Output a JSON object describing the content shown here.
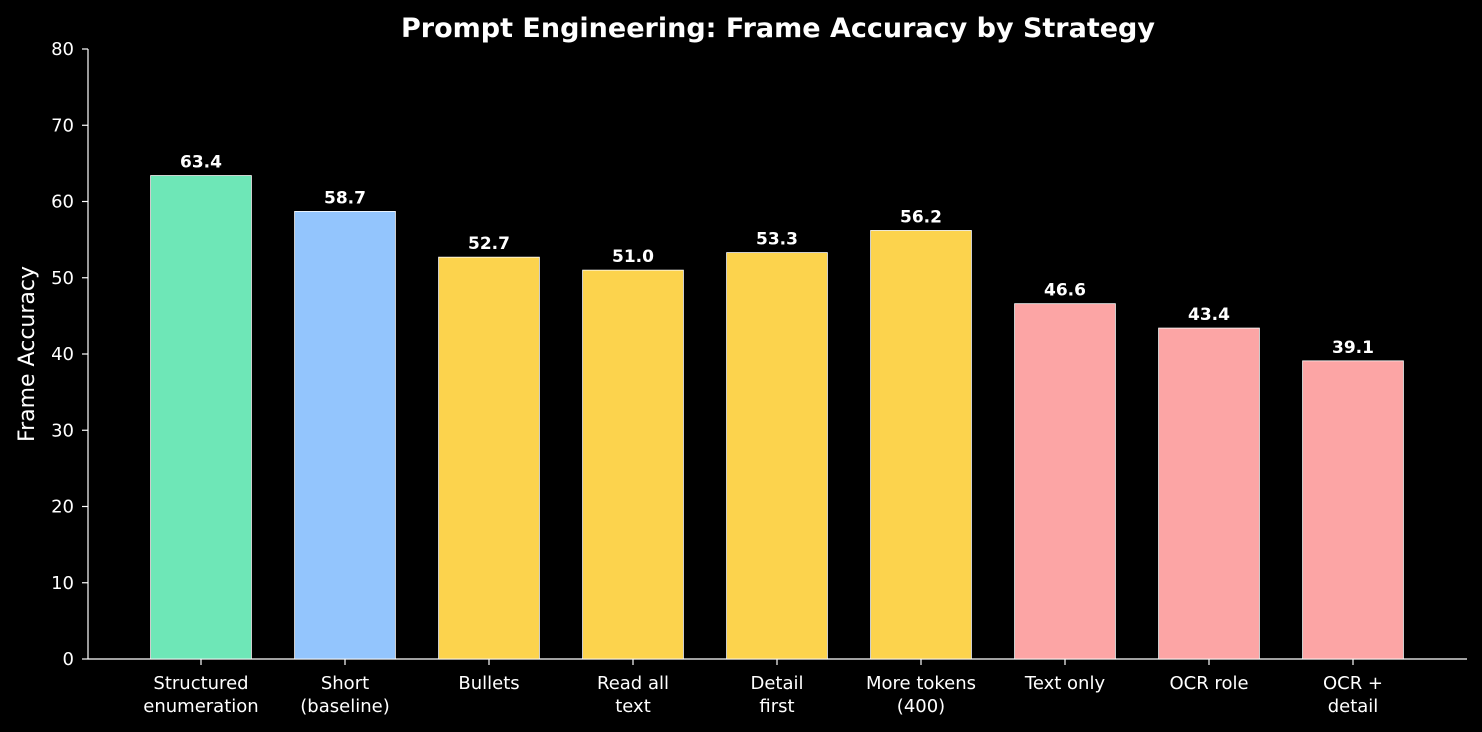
{
  "chart_data": {
    "type": "bar",
    "title": "Prompt Engineering: Frame Accuracy by Strategy",
    "y_label": "Frame Accuracy",
    "categories": [
      "Structured\nenumeration",
      "Short\n(baseline)",
      "Bullets",
      "Read all\ntext",
      "Detail\nfirst",
      "More tokens\n(400)",
      "Text only",
      "OCR role",
      "OCR +\ndetail"
    ],
    "values": [
      63.4,
      58.7,
      52.7,
      51.0,
      53.3,
      56.2,
      46.6,
      43.4,
      39.1
    ],
    "value_labels": [
      "63.4",
      "58.7",
      "52.7",
      "51.0",
      "53.3",
      "56.2",
      "46.6",
      "43.4",
      "39.1"
    ],
    "colors": [
      "#6ee7b7",
      "#93c5fd",
      "#fcd34d",
      "#fcd34d",
      "#fcd34d",
      "#fcd34d",
      "#fca5a5",
      "#fca5a5",
      "#fca5a5"
    ],
    "ylim": [
      0,
      80
    ],
    "yticks": [
      0,
      10,
      20,
      30,
      40,
      50,
      60,
      70,
      80
    ],
    "grid": false
  }
}
